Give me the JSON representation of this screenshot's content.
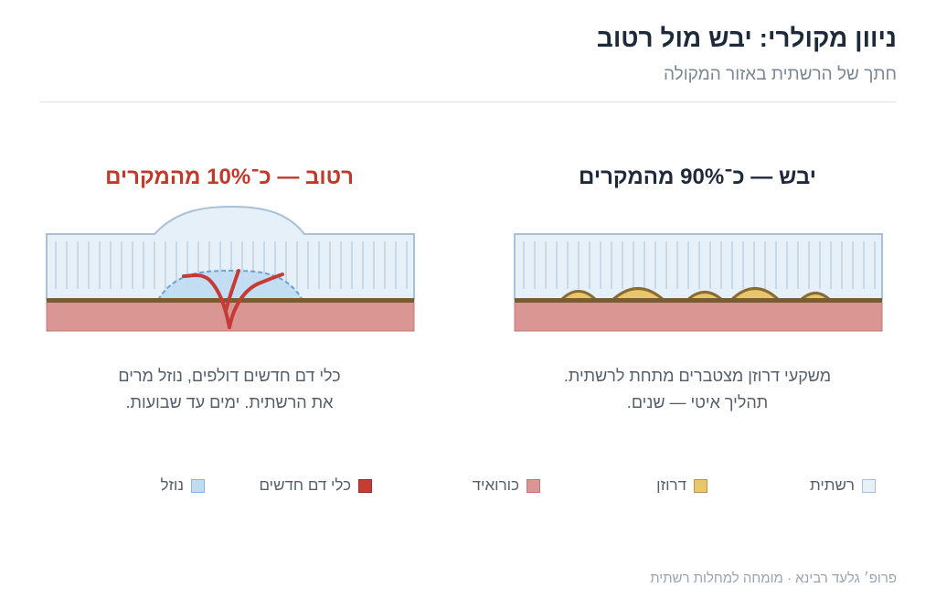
{
  "header": {
    "title": "ניוון מקולרי: יבש מול רטוב",
    "subtitle": "חתך של הרשתית באזור המקולה"
  },
  "panels": {
    "dry": {
      "title": "יבש — כ־90% מהמקרים",
      "caption_line1": ".משקעי דרוזן מצטברים מתחת לרשתית",
      "caption_line2": ".תהליך איטי — שנים"
    },
    "wet": {
      "title": "רטוב — כ־10% מהמקרים",
      "caption_line1": "כלי דם חדשים דולפים, נוזל מרים",
      "caption_line2": ".את הרשתית. ימים עד שבועות"
    }
  },
  "legend": {
    "retina": "רשתית",
    "drusen": "דרוזן",
    "choroid": "כורואיד",
    "vessels": "כלי דם חדשים",
    "fluid": "נוזל"
  },
  "colors": {
    "retina_fill": "#e6f0f9",
    "retina_stroke": "#a9c1d6",
    "drusen": "#e8c66a",
    "drusen_stroke": "#8a6a35",
    "membrane": "#7a5c34",
    "choroid": "#d99692",
    "vessels": "#c43c35",
    "fluid": "#bfdcf1",
    "fluid_stroke": "#6aa3d1",
    "wet_title": "#c0392b"
  },
  "footer": {
    "credit": "פרופ׳ גלעד רבינא · מומחה למחלות רשתית"
  }
}
